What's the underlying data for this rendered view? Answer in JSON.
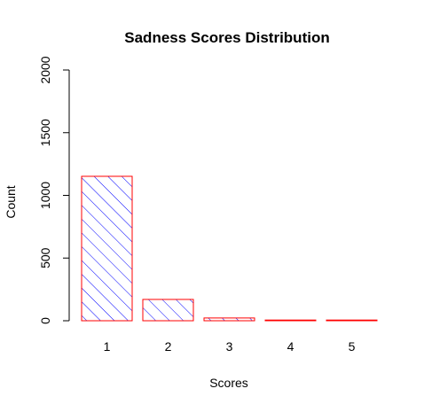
{
  "chart_data": {
    "type": "bar",
    "title": "Sadness Scores Distribution",
    "xlabel": "Scores",
    "ylabel": "Count",
    "categories": [
      "1",
      "2",
      "3",
      "4",
      "5"
    ],
    "values": [
      1152,
      170,
      22,
      4,
      3
    ],
    "ylim": [
      0,
      2000
    ],
    "yticks": [
      "0",
      "500",
      "1000",
      "1500",
      "2000"
    ],
    "grid": false,
    "legend": "none",
    "colors": {
      "bar_border": "#ff0000",
      "bar_hatch": "#0000ff",
      "axis": "#000000",
      "background": "#ffffff"
    }
  }
}
